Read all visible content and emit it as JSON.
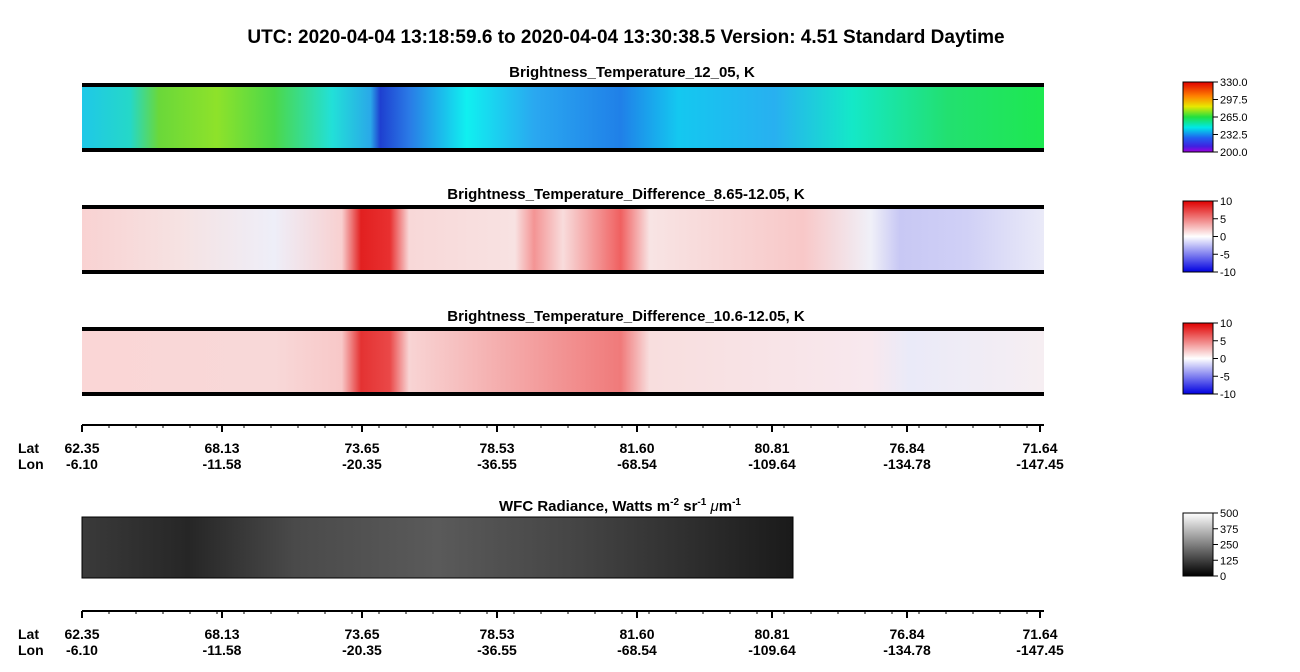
{
  "header": {
    "title": "UTC:  2020-04-04   13:18:59.6  to  2020-04-04   13:30:38.5    Version: 4.51  Standard Daytime"
  },
  "panels": [
    {
      "title": "Brightness_Temperature_12_05, K",
      "colorbar": [
        "330.0",
        "297.5",
        "265.0",
        "232.5",
        "200.0"
      ]
    },
    {
      "title": "Brightness_Temperature_Difference_8.65-12.05, K",
      "colorbar": [
        "10",
        "5",
        "0",
        "-5",
        "-10"
      ]
    },
    {
      "title": "Brightness_Temperature_Difference_10.6-12.05, K",
      "colorbar": [
        "10",
        "5",
        "0",
        "-5",
        "-10"
      ]
    },
    {
      "title_parts": [
        "WFC Radiance, Watts m",
        "-2",
        " sr",
        "-1",
        " ",
        "μ",
        "m",
        "-1"
      ],
      "colorbar": [
        "500",
        "375",
        "250",
        "125",
        "0"
      ]
    }
  ],
  "track_axes": [
    {
      "lat_label": "Lat",
      "lon_label": "Lon",
      "lat": [
        "62.35",
        "68.13",
        "73.65",
        "78.53",
        "81.60",
        "80.81",
        "76.84",
        "71.64"
      ],
      "lon": [
        "-6.10",
        "-11.58",
        "-20.35",
        "-36.55",
        "-68.54",
        "-109.64",
        "-134.78",
        "-147.45"
      ]
    },
    {
      "lat_label": "Lat",
      "lon_label": "Lon",
      "lat": [
        "62.35",
        "68.13",
        "73.65",
        "78.53",
        "81.60",
        "80.81",
        "76.84",
        "71.64"
      ],
      "lon": [
        "-6.10",
        "-11.58",
        "-20.35",
        "-36.55",
        "-68.54",
        "-109.64",
        "-134.78",
        "-147.45"
      ]
    }
  ]
}
